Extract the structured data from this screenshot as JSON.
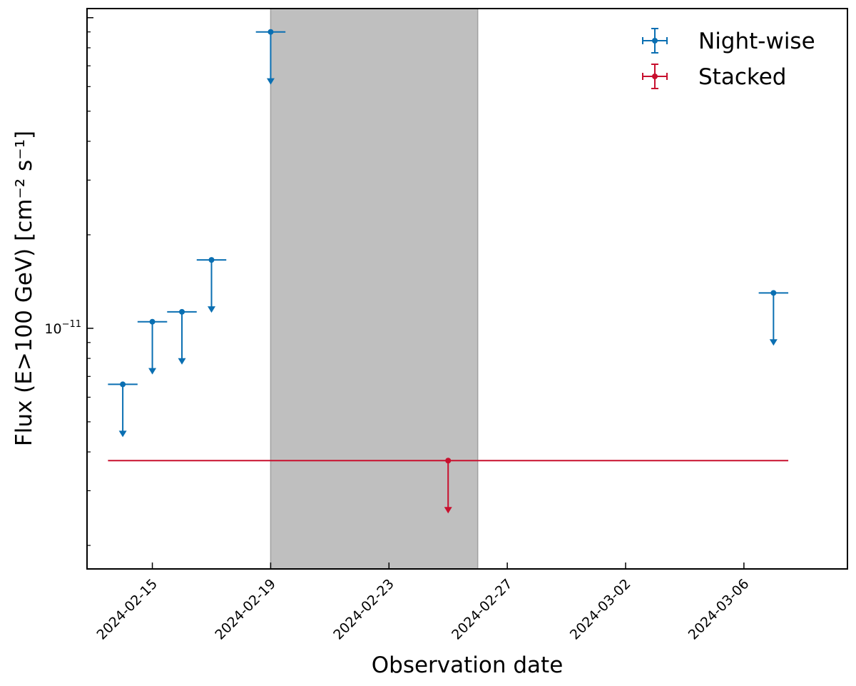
{
  "chart_data": {
    "type": "scatter",
    "xlabel": "Observation date",
    "ylabel": "Flux (E>100 GeV) [cm⁻² s⁻¹]",
    "yscale": "log",
    "xlim": [
      "2024-02-12T19:00",
      "2024-03-09T12:00"
    ],
    "ylim": [
      1.68e-12,
      1.07e-10
    ],
    "grid": false,
    "legend_position": "top-right",
    "x_ticks": [
      "2024-02-15",
      "2024-02-19",
      "2024-02-23",
      "2024-02-27",
      "2024-03-02",
      "2024-03-06"
    ],
    "y_tick_labels": [
      {
        "value": 1e-11,
        "base": "10",
        "exponent": "−11"
      }
    ],
    "shaded_regions": [
      {
        "x_start": "2024-02-19",
        "x_end": "2024-02-26",
        "color": "#bfbfbf"
      }
    ],
    "series": [
      {
        "name": "Night-wise",
        "color": "#0a6fb2",
        "upper_limits": true,
        "points": [
          {
            "x": "2024-02-14",
            "y": 6.6e-12,
            "x_err_days": 0.5
          },
          {
            "x": "2024-02-15",
            "y": 1.05e-11,
            "x_err_days": 0.5
          },
          {
            "x": "2024-02-16",
            "y": 1.13e-11,
            "x_err_days": 0.5
          },
          {
            "x": "2024-02-17",
            "y": 1.66e-11,
            "x_err_days": 0.5
          },
          {
            "x": "2024-02-19",
            "y": 9e-11,
            "x_err_days": 0.5
          },
          {
            "x": "2024-03-07",
            "y": 1.3e-11,
            "x_err_days": 0.5
          }
        ]
      },
      {
        "name": "Stacked",
        "color": "#c8102e",
        "upper_limits": true,
        "points": [
          {
            "x": "2024-02-25",
            "y": 3.75e-12,
            "x_range": [
              "2024-02-13T12:00",
              "2024-03-07T12:00"
            ]
          }
        ]
      }
    ]
  }
}
